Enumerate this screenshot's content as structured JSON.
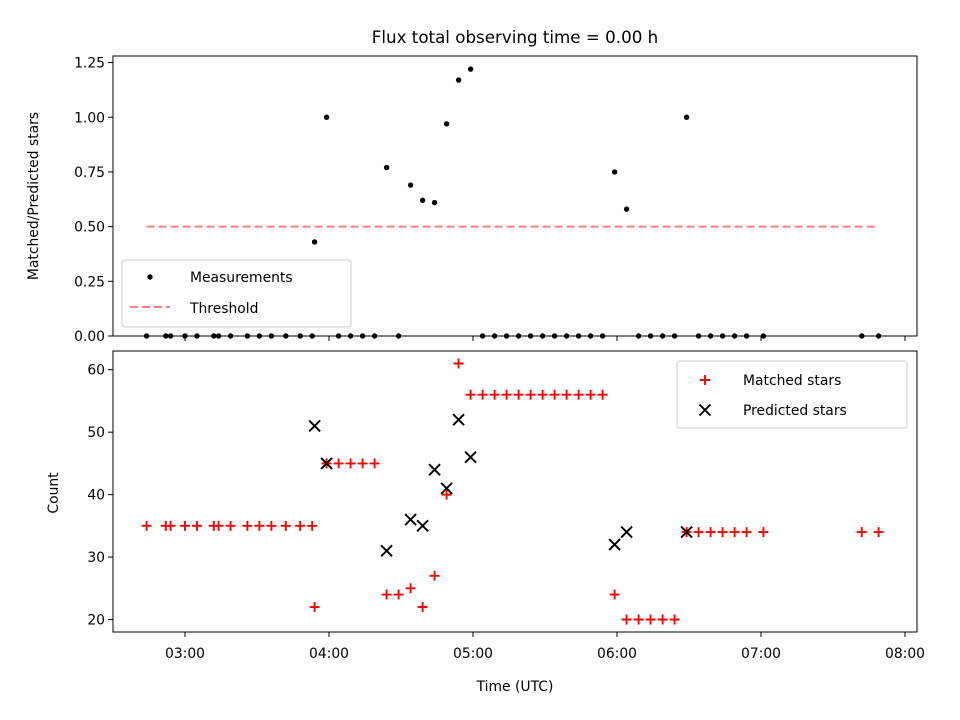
{
  "chart_data": [
    {
      "type": "scatter",
      "title": "Flux total observing time = 0.00 h",
      "xlabel": "",
      "ylabel": "Matched/Predicted stars",
      "ylim": [
        0,
        1.28
      ],
      "yticks": [
        0,
        0.25,
        0.5,
        0.75,
        1.0,
        1.25
      ],
      "ytick_labels": [
        "0.00",
        "0.25",
        "0.50",
        "0.75",
        "1.00",
        "1.25"
      ],
      "legend": "lower-left",
      "series": [
        {
          "name": "Measurements",
          "marker": "dot",
          "color": "#000000",
          "points": [
            [
              "02:44",
              0
            ],
            [
              "02:52",
              0
            ],
            [
              "02:54",
              0
            ],
            [
              "03:00",
              0
            ],
            [
              "03:05",
              0
            ],
            [
              "03:12",
              0
            ],
            [
              "03:14",
              0
            ],
            [
              "03:19",
              0
            ],
            [
              "03:26",
              0
            ],
            [
              "03:31",
              0
            ],
            [
              "03:36",
              0
            ],
            [
              "03:42",
              0
            ],
            [
              "03:48",
              0
            ],
            [
              "03:53",
              0
            ],
            [
              "03:54",
              0.43
            ],
            [
              "03:59",
              1.0
            ],
            [
              "04:04",
              0
            ],
            [
              "04:09",
              0
            ],
            [
              "04:14",
              0
            ],
            [
              "04:19",
              0
            ],
            [
              "04:24",
              0.77
            ],
            [
              "04:29",
              0
            ],
            [
              "04:34",
              0.69
            ],
            [
              "04:39",
              0.62
            ],
            [
              "04:44",
              0.61
            ],
            [
              "04:49",
              0.97
            ],
            [
              "04:54",
              1.17
            ],
            [
              "04:59",
              1.22
            ],
            [
              "05:04",
              0
            ],
            [
              "05:09",
              0
            ],
            [
              "05:14",
              0
            ],
            [
              "05:19",
              0
            ],
            [
              "05:24",
              0
            ],
            [
              "05:29",
              0
            ],
            [
              "05:34",
              0
            ],
            [
              "05:39",
              0
            ],
            [
              "05:44",
              0
            ],
            [
              "05:49",
              0
            ],
            [
              "05:54",
              0
            ],
            [
              "05:59",
              0.75
            ],
            [
              "06:04",
              0.58
            ],
            [
              "06:09",
              0
            ],
            [
              "06:14",
              0
            ],
            [
              "06:19",
              0
            ],
            [
              "06:24",
              0
            ],
            [
              "06:29",
              1.0
            ],
            [
              "06:34",
              0
            ],
            [
              "06:39",
              0
            ],
            [
              "06:44",
              0
            ],
            [
              "06:49",
              0
            ],
            [
              "06:54",
              0
            ],
            [
              "07:01",
              0
            ],
            [
              "07:42",
              0
            ],
            [
              "07:49",
              0
            ]
          ]
        },
        {
          "name": "Threshold",
          "type": "line",
          "style": "dashed",
          "color": "#ff7f7f",
          "points": [
            [
              "02:44",
              0.5
            ],
            [
              "07:49",
              0.5
            ]
          ]
        }
      ]
    },
    {
      "type": "scatter",
      "title": "",
      "xlabel": "Time (UTC)",
      "ylabel": "Count",
      "xlim": [
        "02:30",
        "08:05"
      ],
      "xticks": [
        "03:00",
        "04:00",
        "05:00",
        "06:00",
        "07:00",
        "08:00"
      ],
      "ylim": [
        18,
        63
      ],
      "yticks": [
        20,
        30,
        40,
        50,
        60
      ],
      "legend": "top-right",
      "series": [
        {
          "name": "Matched stars",
          "marker": "plus",
          "color": "#ff0000",
          "points": [
            [
              "02:44",
              35
            ],
            [
              "02:52",
              35
            ],
            [
              "02:54",
              35
            ],
            [
              "03:00",
              35
            ],
            [
              "03:05",
              35
            ],
            [
              "03:12",
              35
            ],
            [
              "03:14",
              35
            ],
            [
              "03:19",
              35
            ],
            [
              "03:26",
              35
            ],
            [
              "03:31",
              35
            ],
            [
              "03:36",
              35
            ],
            [
              "03:42",
              35
            ],
            [
              "03:48",
              35
            ],
            [
              "03:53",
              35
            ],
            [
              "03:54",
              22
            ],
            [
              "03:59",
              45
            ],
            [
              "04:04",
              45
            ],
            [
              "04:09",
              45
            ],
            [
              "04:14",
              45
            ],
            [
              "04:19",
              45
            ],
            [
              "04:24",
              24
            ],
            [
              "04:29",
              24
            ],
            [
              "04:34",
              25
            ],
            [
              "04:39",
              22
            ],
            [
              "04:44",
              27
            ],
            [
              "04:49",
              40
            ],
            [
              "04:54",
              61
            ],
            [
              "04:59",
              56
            ],
            [
              "05:04",
              56
            ],
            [
              "05:09",
              56
            ],
            [
              "05:14",
              56
            ],
            [
              "05:19",
              56
            ],
            [
              "05:24",
              56
            ],
            [
              "05:29",
              56
            ],
            [
              "05:34",
              56
            ],
            [
              "05:39",
              56
            ],
            [
              "05:44",
              56
            ],
            [
              "05:49",
              56
            ],
            [
              "05:54",
              56
            ],
            [
              "05:59",
              24
            ],
            [
              "06:04",
              20
            ],
            [
              "06:09",
              20
            ],
            [
              "06:14",
              20
            ],
            [
              "06:19",
              20
            ],
            [
              "06:24",
              20
            ],
            [
              "06:29",
              34
            ],
            [
              "06:34",
              34
            ],
            [
              "06:39",
              34
            ],
            [
              "06:44",
              34
            ],
            [
              "06:49",
              34
            ],
            [
              "06:54",
              34
            ],
            [
              "07:01",
              34
            ],
            [
              "07:42",
              34
            ],
            [
              "07:49",
              34
            ]
          ]
        },
        {
          "name": "Predicted stars",
          "marker": "x",
          "color": "#000000",
          "points": [
            [
              "03:54",
              51
            ],
            [
              "03:59",
              45
            ],
            [
              "04:24",
              31
            ],
            [
              "04:34",
              36
            ],
            [
              "04:39",
              35
            ],
            [
              "04:44",
              44
            ],
            [
              "04:49",
              41
            ],
            [
              "04:54",
              52
            ],
            [
              "04:59",
              46
            ],
            [
              "05:59",
              32
            ],
            [
              "06:04",
              34
            ],
            [
              "06:29",
              34
            ]
          ]
        }
      ]
    }
  ]
}
